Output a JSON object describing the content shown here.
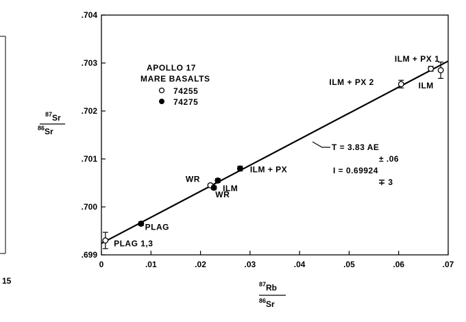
{
  "chart_data": {
    "type": "scatter",
    "xlim": [
      0,
      0.07
    ],
    "ylim": [
      0.699,
      0.704
    ],
    "x_ticks": [
      {
        "v": 0,
        "label": "0"
      },
      {
        "v": 0.01,
        "label": ".01"
      },
      {
        "v": 0.02,
        "label": ".02"
      },
      {
        "v": 0.03,
        "label": ".03"
      },
      {
        "v": 0.04,
        "label": ".04"
      },
      {
        "v": 0.05,
        "label": ".05"
      },
      {
        "v": 0.06,
        "label": ".06"
      },
      {
        "v": 0.07,
        "label": ".07"
      }
    ],
    "y_ticks": [
      {
        "v": 0.699,
        "label": ".699"
      },
      {
        "v": 0.7,
        "label": ".700"
      },
      {
        "v": 0.701,
        "label": ".701"
      },
      {
        "v": 0.702,
        "label": ".702"
      },
      {
        "v": 0.703,
        "label": ".703"
      },
      {
        "v": 0.704,
        "label": ".704"
      }
    ],
    "xlabel": {
      "num_sup": "87",
      "num": "Rb",
      "den_sup": "86",
      "den": "Sr"
    },
    "ylabel": {
      "num_sup": "87",
      "num": "Sr",
      "den_sup": "86",
      "den": "Sr"
    },
    "legend": {
      "title_lines": [
        "APOLLO 17",
        "MARE BASALTS"
      ],
      "placement": "top-left",
      "entries": [
        {
          "marker": "open-circle",
          "label": "74255"
        },
        {
          "marker": "filled-circle",
          "label": "74275"
        }
      ]
    },
    "series": [
      {
        "name": "74255",
        "marker": "open",
        "points": [
          {
            "x": 0.0008,
            "y": 0.6993,
            "yerr": 0.00017
          },
          {
            "x": 0.022,
            "y": 0.70045,
            "yerr": 3e-05
          },
          {
            "x": 0.0605,
            "y": 0.70256,
            "yerr": 8e-05
          },
          {
            "x": 0.0665,
            "y": 0.70288,
            "yerr": 5e-05
          },
          {
            "x": 0.0685,
            "y": 0.70285,
            "yerr": 0.00017
          }
        ]
      },
      {
        "name": "74275",
        "marker": "filled",
        "points": [
          {
            "x": 0.008,
            "y": 0.69965,
            "yerr": 4e-05
          },
          {
            "x": 0.0227,
            "y": 0.7004,
            "yerr": 4e-05
          },
          {
            "x": 0.0235,
            "y": 0.70055,
            "yerr": 4e-05
          },
          {
            "x": 0.028,
            "y": 0.7008,
            "yerr": 5e-05
          }
        ]
      }
    ],
    "isochron": {
      "x0": 0,
      "y0": 0.69924,
      "x1": 0.07,
      "y1": 0.70304
    },
    "annotations": [
      {
        "text": "PLAG 1,3",
        "x": 0.0025,
        "y": 0.69918,
        "anchor": "start"
      },
      {
        "text": "PLAG",
        "x": 0.0088,
        "y": 0.69952,
        "anchor": "start"
      },
      {
        "text": "WR",
        "x": 0.017,
        "y": 0.70052,
        "anchor": "start"
      },
      {
        "text": "ILM",
        "x": 0.0245,
        "y": 0.70033,
        "anchor": "start"
      },
      {
        "text": "WR",
        "x": 0.023,
        "y": 0.7002,
        "anchor": "start"
      },
      {
        "text": "ILM + PX",
        "x": 0.03,
        "y": 0.70072,
        "anchor": "start"
      },
      {
        "text": "ILM + PX 1",
        "x": 0.0592,
        "y": 0.70303,
        "anchor": "start"
      },
      {
        "text": "ILM + PX 2",
        "x": 0.046,
        "y": 0.70254,
        "anchor": "start"
      },
      {
        "text": "ILM",
        "x": 0.064,
        "y": 0.70247,
        "anchor": "start"
      }
    ],
    "age_box": {
      "lines": [
        "T = 3.83 AE",
        "± .06",
        "I = 0.69924",
        "∓ 3"
      ]
    }
  },
  "margin_text": {
    "left_fragment": "15"
  }
}
